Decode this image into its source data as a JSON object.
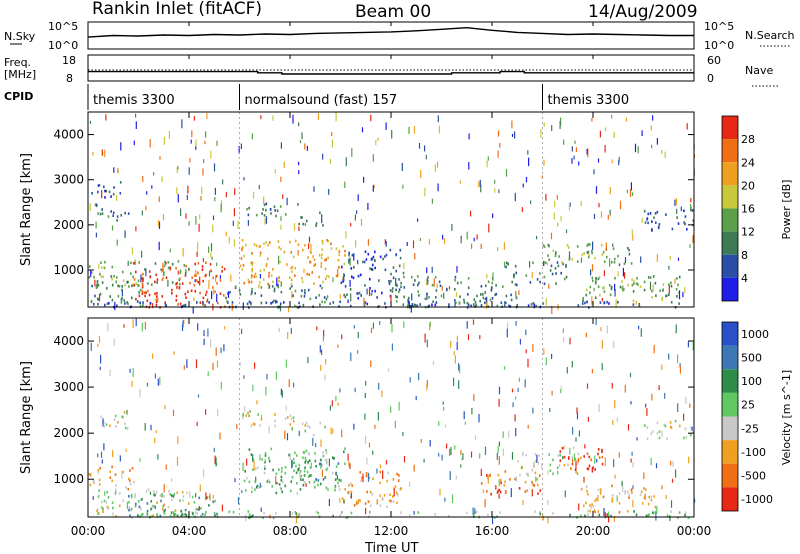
{
  "header": {
    "radar_title": "Rankin Inlet (fitACF)",
    "beam": "Beam 00",
    "date": "14/Aug/2009"
  },
  "noise_panel": {
    "left_label": "N.Sky",
    "right_label": "N.Search",
    "left_ticks": [
      "10^5",
      "10^0"
    ],
    "right_ticks": [
      "10^5",
      "10^0"
    ]
  },
  "freq_panel": {
    "left_label_1": "Freq.",
    "left_label_2": "[MHz]",
    "left_ticks": [
      "18",
      "8"
    ],
    "right_label": "Nave",
    "right_ticks": [
      "60",
      "0"
    ]
  },
  "cpid": {
    "label": "CPID",
    "segments": [
      {
        "start": 0,
        "end": 6,
        "text": "themis 3300"
      },
      {
        "start": 6,
        "end": 18,
        "text": "normalsound (fast) 157"
      },
      {
        "start": 18,
        "end": 24,
        "text": "themis 3300"
      }
    ]
  },
  "chart_data": [
    {
      "type": "heatmap",
      "name": "power",
      "ylabel": "Slant Range [km]",
      "y_ticks": [
        "1000",
        "2000",
        "3000",
        "4000"
      ],
      "ylim": [
        180,
        4500
      ],
      "xlim": [
        0,
        24
      ],
      "colorbar_label": "Power [dB]",
      "colorbar_ticks": [
        "4",
        "8",
        "12",
        "16",
        "20",
        "24",
        "28"
      ],
      "colors": [
        "#1e1ee6",
        "#2a4fa8",
        "#3f7a57",
        "#5aa04a",
        "#c8c83c",
        "#f0a020",
        "#f06e14",
        "#e62814"
      ],
      "regions": [
        {
          "t0": 0.2,
          "t1": 1.6,
          "r0": 2100,
          "r1": 2500,
          "level": 2
        },
        {
          "t0": 0.1,
          "t1": 1.3,
          "r0": 2600,
          "r1": 3000,
          "level": 1
        },
        {
          "t0": 0.0,
          "t1": 4.0,
          "r0": 650,
          "r1": 1250,
          "level": 3
        },
        {
          "t0": 1.8,
          "t1": 5.4,
          "r0": 200,
          "r1": 1200,
          "level": 7
        },
        {
          "t0": 0.1,
          "t1": 2.2,
          "r0": 200,
          "r1": 800,
          "level": 2
        },
        {
          "t0": 5.4,
          "t1": 9.5,
          "r0": 200,
          "r1": 700,
          "level": 2
        },
        {
          "t0": 6.0,
          "t1": 10.2,
          "r0": 700,
          "r1": 1700,
          "level": 5
        },
        {
          "t0": 6.0,
          "t1": 8.3,
          "r0": 2200,
          "r1": 2500,
          "level": 2
        },
        {
          "t0": 8.3,
          "t1": 9.5,
          "r0": 2000,
          "r1": 2300,
          "level": 2
        },
        {
          "t0": 10.0,
          "t1": 12.5,
          "r0": 400,
          "r1": 1500,
          "level": 1
        },
        {
          "t0": 12.0,
          "t1": 17.0,
          "r0": 200,
          "r1": 900,
          "level": 2
        },
        {
          "t0": 16.5,
          "t1": 19.0,
          "r0": 700,
          "r1": 1200,
          "level": 2
        },
        {
          "t0": 18.0,
          "t1": 21.5,
          "r0": 1100,
          "r1": 1600,
          "level": 3
        },
        {
          "t0": 19.5,
          "t1": 23.5,
          "r0": 300,
          "r1": 900,
          "level": 3
        },
        {
          "t0": 22.0,
          "t1": 24.0,
          "r0": 1900,
          "r1": 2400,
          "level": 1
        },
        {
          "t0": 0.0,
          "t1": 24.0,
          "r0": 190,
          "r1": 330,
          "level": 1
        }
      ]
    },
    {
      "type": "heatmap",
      "name": "velocity",
      "ylabel": "Slant Range [km]",
      "y_ticks": [
        "1000",
        "2000",
        "3000",
        "4000"
      ],
      "ylim": [
        180,
        4500
      ],
      "xlim": [
        0,
        24
      ],
      "colorbar_label": "Velocity [m s^-1]",
      "colorbar_ticks": [
        "1000",
        "500",
        "100",
        "25",
        "-25",
        "-100",
        "-500",
        "-1000"
      ],
      "colors": [
        "#2850c8",
        "#3c78b4",
        "#2e8c4a",
        "#5fc85f",
        "#c8c8c8",
        "#f0a020",
        "#f06e14",
        "#e62814"
      ],
      "regions": [
        {
          "t0": 0.2,
          "t1": 1.6,
          "r0": 2100,
          "r1": 2500,
          "level": 4
        },
        {
          "t0": 0.0,
          "t1": 1.8,
          "r0": 800,
          "r1": 1300,
          "level": 5
        },
        {
          "t0": 0.2,
          "t1": 4.2,
          "r0": 200,
          "r1": 800,
          "level": 4
        },
        {
          "t0": 1.5,
          "t1": 5.2,
          "r0": 200,
          "r1": 700,
          "level": 2
        },
        {
          "t0": 6.0,
          "t1": 8.3,
          "r0": 2100,
          "r1": 2500,
          "level": 4
        },
        {
          "t0": 8.3,
          "t1": 9.5,
          "r0": 1950,
          "r1": 2250,
          "level": 4
        },
        {
          "t0": 6.0,
          "t1": 10.2,
          "r0": 700,
          "r1": 1700,
          "level": 3
        },
        {
          "t0": 8.0,
          "t1": 10.0,
          "r0": 1000,
          "r1": 1500,
          "level": 2
        },
        {
          "t0": 10.0,
          "t1": 12.5,
          "r0": 400,
          "r1": 1200,
          "level": 5
        },
        {
          "t0": 15.5,
          "t1": 18.0,
          "r0": 700,
          "r1": 1200,
          "level": 6
        },
        {
          "t0": 17.0,
          "t1": 19.5,
          "r0": 1100,
          "r1": 1600,
          "level": 4
        },
        {
          "t0": 18.5,
          "t1": 20.5,
          "r0": 1200,
          "r1": 1700,
          "level": 7
        },
        {
          "t0": 19.5,
          "t1": 22.5,
          "r0": 300,
          "r1": 900,
          "level": 5
        },
        {
          "t0": 22.0,
          "t1": 24.0,
          "r0": 1900,
          "r1": 2300,
          "level": 4
        },
        {
          "t0": 0.0,
          "t1": 24.0,
          "r0": 190,
          "r1": 330,
          "level": 3
        }
      ]
    }
  ],
  "x_axis": {
    "ticks": [
      "00:00",
      "04:00",
      "08:00",
      "12:00",
      "16:00",
      "20:00",
      "00:00"
    ],
    "label": "Time UT"
  },
  "noise_series": {
    "sky": [
      2.1,
      2.4,
      2.3,
      2.5,
      2.4,
      2.6,
      2.5,
      2.7,
      2.6,
      2.8,
      2.9,
      3.0,
      3.1,
      3.3,
      3.6,
      3.9,
      3.4,
      3.0,
      2.8,
      2.6,
      2.7,
      2.6,
      2.5,
      2.4,
      2.4
    ]
  },
  "freq_series": {
    "freq": [
      11.5,
      11.5,
      11.5,
      11.5,
      11.5,
      11.5,
      11.5,
      11.0,
      10.5,
      10.5,
      10.5,
      10.5,
      10.5,
      10.5,
      10.5,
      11.0,
      11.0,
      11.5,
      11.0,
      11.0,
      11.0,
      11.0,
      11.0,
      11.0,
      11.0
    ]
  }
}
